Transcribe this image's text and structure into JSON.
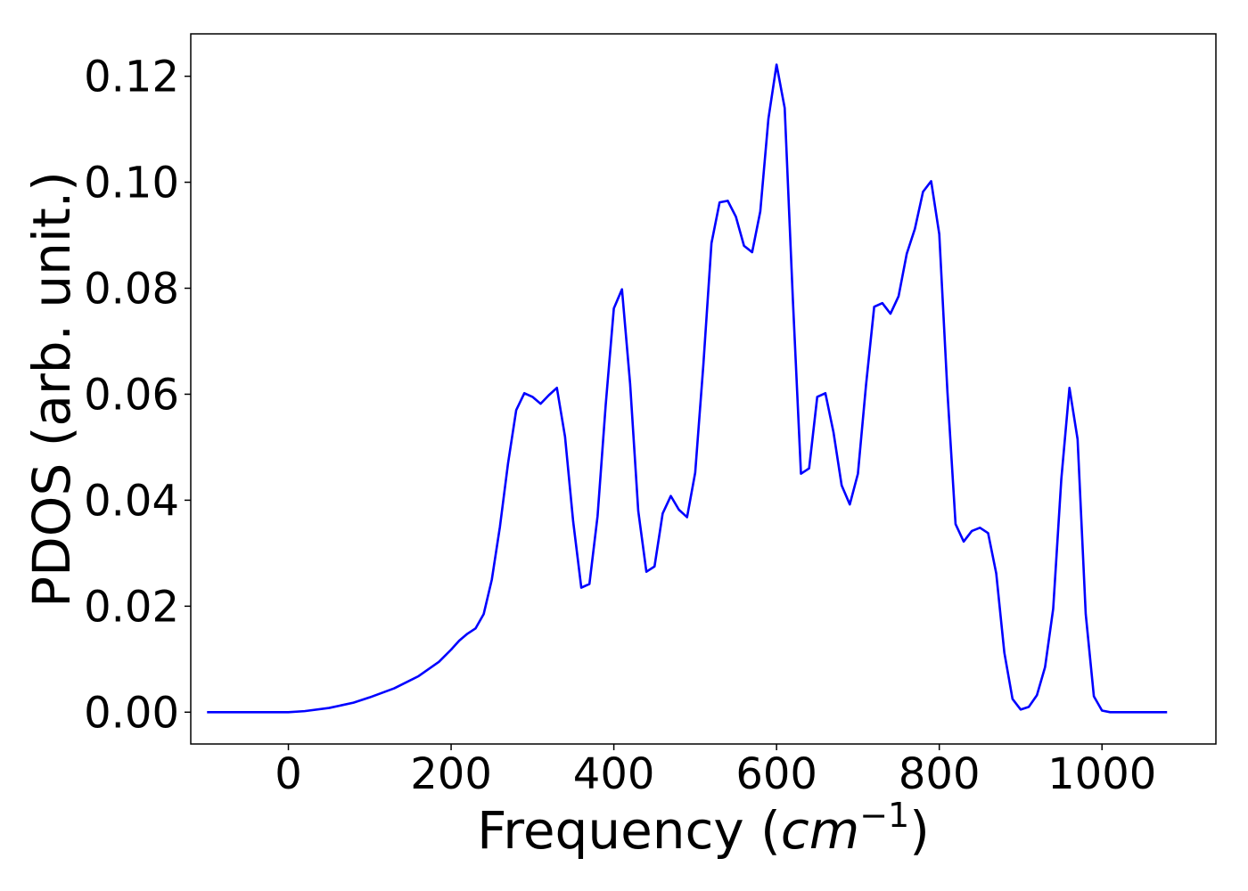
{
  "chart_data": {
    "type": "line",
    "xlabel_main": "Frequency (",
    "xlabel_italic": "cm",
    "xlabel_sup": "−1",
    "xlabel_close": ")",
    "ylabel": "PDOS (arb. unit.)",
    "xlim": [
      -120,
      1140
    ],
    "ylim": [
      -0.006,
      0.128
    ],
    "x_ticks": [
      0,
      200,
      400,
      600,
      800,
      1000
    ],
    "x_tick_labels": [
      "0",
      "200",
      "400",
      "600",
      "800",
      "1000"
    ],
    "y_ticks": [
      0.0,
      0.02,
      0.04,
      0.06,
      0.08,
      0.1,
      0.12
    ],
    "y_tick_labels": [
      "0.00",
      "0.02",
      "0.04",
      "0.06",
      "0.08",
      "0.10",
      "0.12"
    ],
    "grid": false,
    "series": [
      {
        "color": "#0000ff",
        "x": [
          -100,
          -50,
          0,
          20,
          50,
          80,
          100,
          130,
          160,
          185,
          200,
          210,
          220,
          230,
          240,
          250,
          260,
          270,
          280,
          290,
          300,
          310,
          320,
          330,
          340,
          350,
          360,
          370,
          380,
          390,
          400,
          410,
          420,
          430,
          440,
          450,
          460,
          470,
          480,
          490,
          500,
          510,
          520,
          530,
          540,
          550,
          560,
          570,
          580,
          590,
          600,
          610,
          620,
          630,
          640,
          650,
          660,
          670,
          680,
          690,
          700,
          710,
          720,
          730,
          740,
          750,
          760,
          770,
          780,
          790,
          800,
          810,
          820,
          830,
          840,
          850,
          860,
          870,
          880,
          890,
          900,
          910,
          920,
          930,
          940,
          950,
          960,
          970,
          980,
          990,
          1000,
          1010,
          1030,
          1080
        ],
        "y": [
          0.0,
          0.0,
          0.0,
          0.0002,
          0.0008,
          0.0018,
          0.0028,
          0.0045,
          0.0068,
          0.0095,
          0.0118,
          0.0135,
          0.0148,
          0.0158,
          0.0185,
          0.025,
          0.035,
          0.047,
          0.057,
          0.0602,
          0.0595,
          0.0582,
          0.0598,
          0.0612,
          0.052,
          0.036,
          0.0235,
          0.0242,
          0.037,
          0.058,
          0.0762,
          0.0798,
          0.062,
          0.038,
          0.0265,
          0.0275,
          0.0375,
          0.0408,
          0.0382,
          0.0368,
          0.0452,
          0.0655,
          0.0885,
          0.0962,
          0.0965,
          0.0935,
          0.088,
          0.0868,
          0.0945,
          0.112,
          0.1222,
          0.114,
          0.078,
          0.045,
          0.046,
          0.0595,
          0.0602,
          0.0528,
          0.0428,
          0.0392,
          0.045,
          0.0618,
          0.0765,
          0.0772,
          0.0752,
          0.0785,
          0.0865,
          0.0912,
          0.0982,
          0.1002,
          0.0902,
          0.0605,
          0.0355,
          0.0322,
          0.0342,
          0.0348,
          0.0338,
          0.0262,
          0.0112,
          0.0025,
          0.0005,
          0.001,
          0.0032,
          0.0085,
          0.0195,
          0.044,
          0.0612,
          0.0515,
          0.0185,
          0.003,
          0.0003,
          0.0,
          0.0,
          0.0
        ]
      }
    ]
  }
}
